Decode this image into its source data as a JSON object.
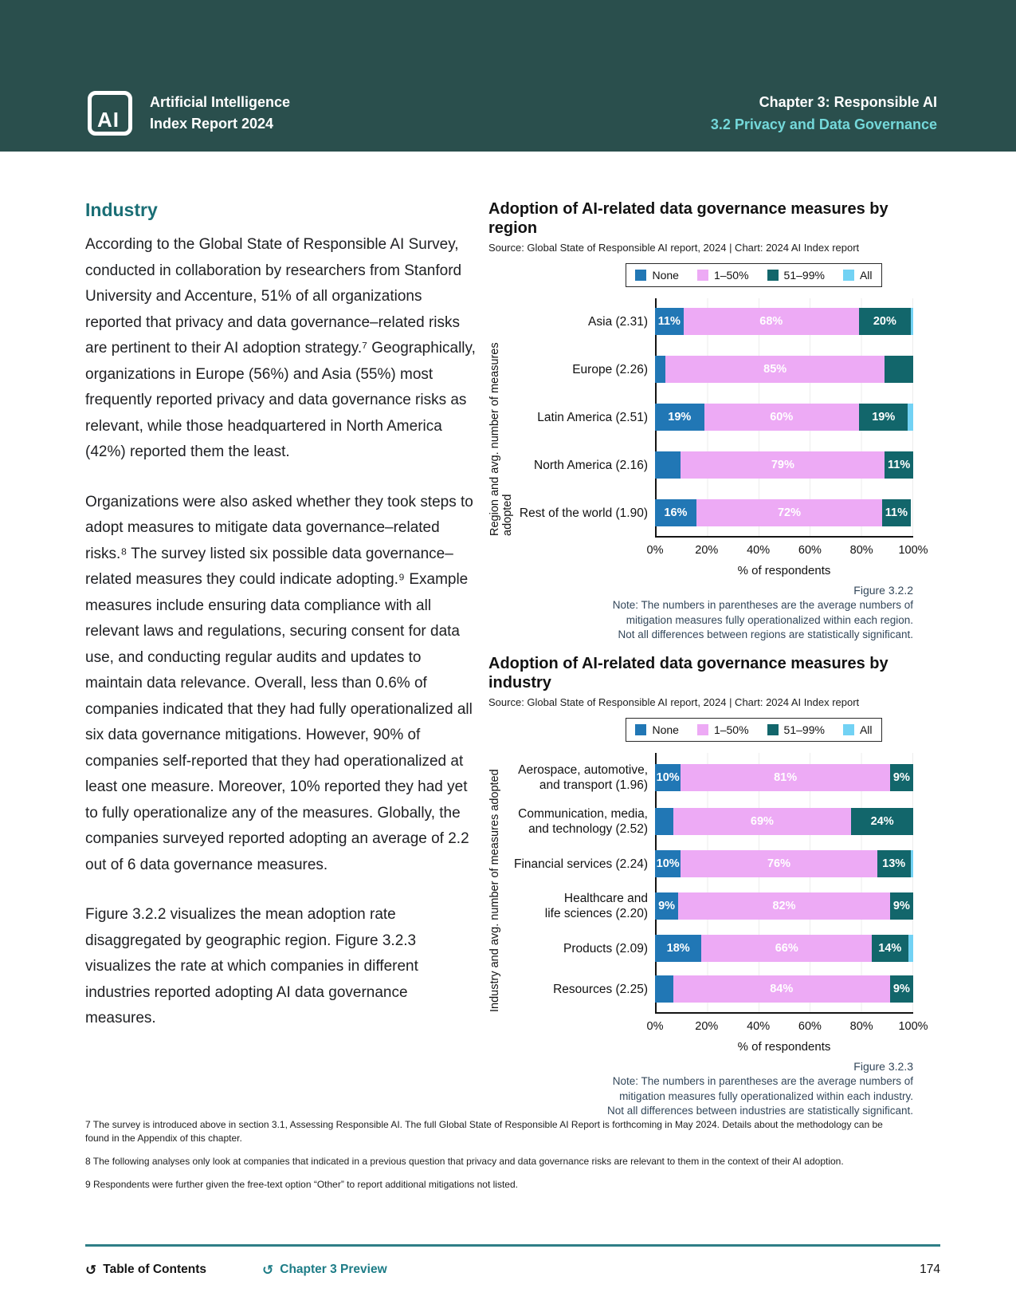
{
  "theme": {
    "header_bg": "#2a4f4d",
    "header_accent": "#74d8da",
    "heading_teal": "#1a6e75",
    "link_teal": "#1d7c86",
    "note_color": "#33475a",
    "rule_color": "#2e7e86"
  },
  "header": {
    "logo_text": "AI",
    "brand_line1": "Artificial Intelligence",
    "brand_line2": "Index Report 2024",
    "chapter": "Chapter 3: Responsible AI",
    "section": "3.2 Privacy and Data Governance"
  },
  "article": {
    "heading": "Industry",
    "paragraphs": [
      "According to the Global State of Responsible AI Survey, conducted in collaboration by researchers from Stanford University and Accenture, 51% of all organizations reported that privacy and data governance–related risks are pertinent to their AI adoption strategy.⁷ Geographically, organizations in Europe (56%) and Asia (55%) most frequently reported privacy and data governance risks as relevant, while those headquartered in North America (42%) reported them the least.",
      "Organizations were also asked whether they took steps to adopt measures to mitigate data governance–related risks.⁸ The survey listed six possible data governance–related measures they could indicate adopting.⁹ Example measures include ensuring data compliance with all relevant laws and regulations, securing consent for data use, and conducting regular audits and updates to maintain data relevance. Overall, less than 0.6% of companies indicated that they had fully operationalized all six data governance mitigations. However, 90% of companies self-reported that they had operationalized at least one measure. Moreover, 10% reported they had yet to fully operationalize any of the measures. Globally, the companies surveyed reported adopting an average of 2.2 out of 6 data governance measures.",
      "Figure 3.2.2 visualizes the mean adoption rate disaggregated by geographic region. Figure 3.2.3 visualizes the rate at which companies in different industries reported adopting AI data governance measures."
    ]
  },
  "colors": {
    "none": "#2177b5",
    "low": "#edaaf5",
    "high": "#12666b",
    "all": "#72d2f4"
  },
  "chart_data": [
    {
      "type": "bar",
      "orientation": "horizontal_stacked",
      "title": "Adoption of AI-related data governance measures by\nregion",
      "source": "Source: Global State of Responsible AI report, 2024 | Chart: 2024 AI Index report",
      "xlabel": "% of respondents",
      "ylabel": "Region and avg. number of measures adopted",
      "xlim": [
        0,
        100
      ],
      "x_ticks": [
        "0%",
        "20%",
        "40%",
        "60%",
        "80%",
        "100%"
      ],
      "grid": true,
      "legend_position": "top",
      "legend": [
        {
          "key": "none",
          "label": "None"
        },
        {
          "key": "low",
          "label": "1–50%"
        },
        {
          "key": "high",
          "label": "51–99%"
        },
        {
          "key": "all",
          "label": "All"
        }
      ],
      "series_keys": [
        "none",
        "low",
        "high",
        "all"
      ],
      "figure_label": "Figure 3.2.2",
      "note": "Note: The numbers in parentheses are the average numbers of\nmitigation measures fully operationalized within each region.\nNot all differences between regions are statistically significant.",
      "bars": [
        {
          "category": "Asia (2.31)",
          "values": {
            "none": 11,
            "low": 68,
            "high": 20,
            "all": 1
          },
          "labels": {
            "none": "11%",
            "low": "68%",
            "high": "20%"
          }
        },
        {
          "category": "Europe (2.26)",
          "values": {
            "none": 4,
            "low": 85,
            "high": 11,
            "all": 0
          },
          "labels": {
            "low": "85%"
          }
        },
        {
          "category": "Latin America (2.51)",
          "values": {
            "none": 19,
            "low": 60,
            "high": 19,
            "all": 2
          },
          "labels": {
            "none": "19%",
            "low": "60%",
            "high": "19%"
          }
        },
        {
          "category": "North America (2.16)",
          "values": {
            "none": 10,
            "low": 79,
            "high": 11,
            "all": 0
          },
          "labels": {
            "low": "79%",
            "high": "11%"
          }
        },
        {
          "category": "Rest of the world (1.90)",
          "values": {
            "none": 16,
            "low": 72,
            "high": 11,
            "all": 0
          },
          "labels": {
            "none": "16%",
            "low": "72%",
            "high": "11%"
          }
        }
      ]
    },
    {
      "type": "bar",
      "orientation": "horizontal_stacked",
      "title": "Adoption of AI-related data governance measures by\nindustry",
      "source": "Source: Global State of Responsible AI report, 2024 | Chart: 2024 AI Index report",
      "xlabel": "% of respondents",
      "ylabel": "Industry and avg. number of measures adopted",
      "xlim": [
        0,
        100
      ],
      "x_ticks": [
        "0%",
        "20%",
        "40%",
        "60%",
        "80%",
        "100%"
      ],
      "grid": true,
      "legend_position": "top",
      "legend": [
        {
          "key": "none",
          "label": "None"
        },
        {
          "key": "low",
          "label": "1–50%"
        },
        {
          "key": "high",
          "label": "51–99%"
        },
        {
          "key": "all",
          "label": "All"
        }
      ],
      "series_keys": [
        "none",
        "low",
        "high",
        "all"
      ],
      "figure_label": "Figure 3.2.3",
      "note": "Note: The numbers in parentheses are the average numbers of\nmitigation measures fully operationalized within each industry.\nNot all differences between industries are statistically significant.",
      "bars": [
        {
          "category": "Aerospace, automotive,\nand transport (1.96)",
          "values": {
            "none": 10,
            "low": 81,
            "high": 9,
            "all": 0
          },
          "labels": {
            "none": "10%",
            "low": "81%",
            "high": "9%"
          }
        },
        {
          "category": "Communication, media,\nand technology (2.52)",
          "values": {
            "none": 7,
            "low": 69,
            "high": 24,
            "all": 0
          },
          "labels": {
            "low": "69%",
            "high": "24%"
          }
        },
        {
          "category": "Financial services (2.24)",
          "values": {
            "none": 10,
            "low": 76,
            "high": 13,
            "all": 1
          },
          "labels": {
            "none": "10%",
            "low": "76%",
            "high": "13%"
          }
        },
        {
          "category": "Healthcare and\nlife sciences (2.20)",
          "values": {
            "none": 9,
            "low": 82,
            "high": 9,
            "all": 0
          },
          "labels": {
            "none": "9%",
            "low": "82%",
            "high": "9%"
          }
        },
        {
          "category": "Products (2.09)",
          "values": {
            "none": 18,
            "low": 66,
            "high": 14,
            "all": 2
          },
          "labels": {
            "none": "18%",
            "low": "66%",
            "high": "14%"
          }
        },
        {
          "category": "Resources (2.25)",
          "values": {
            "none": 7,
            "low": 84,
            "high": 9,
            "all": 0
          },
          "labels": {
            "low": "84%",
            "high": "9%"
          }
        }
      ]
    }
  ],
  "footnotes": [
    "7 The survey is introduced above in section 3.1, Assessing Responsible AI. The full Global State of Responsible AI Report is forthcoming in May 2024. Details about the methodology can be\nfound in the Appendix of this chapter.",
    "8 The following analyses only look at companies that indicated in a previous question that privacy and data governance risks are relevant to them in the context of their AI adoption.",
    "9 Respondents were further given the free-text option “Other” to report additional mitigations not listed."
  ],
  "footer": {
    "back_icon": "↺",
    "toc": "Table of Contents",
    "preview": "Chapter 3 Preview",
    "page": "174"
  }
}
